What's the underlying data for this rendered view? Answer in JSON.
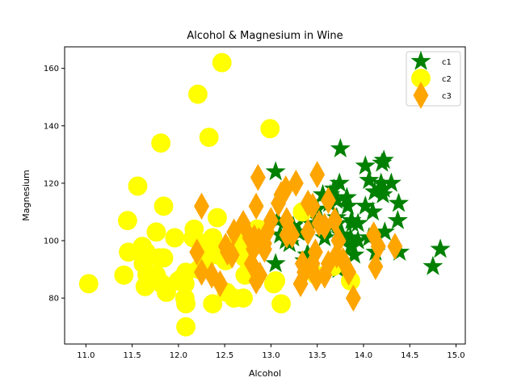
{
  "chart_data": {
    "type": "scatter",
    "title": "Alcohol & Magnesium in Wine",
    "xlabel": "Alcohol",
    "ylabel": "Magnesium",
    "xlim": [
      10.77,
      15.1
    ],
    "ylim": [
      64.0,
      167.5
    ],
    "xticks": [
      11.0,
      11.5,
      12.0,
      12.5,
      13.0,
      13.5,
      14.0,
      14.5,
      15.0
    ],
    "yticks": [
      80,
      100,
      120,
      140,
      160
    ],
    "grid": false,
    "legend_position": "top-right",
    "series": [
      {
        "name": "c1",
        "marker": "star",
        "color": "#008000",
        "points": [
          [
            13.05,
            124
          ],
          [
            13.05,
            92
          ],
          [
            13.07,
            107
          ],
          [
            13.1,
            102
          ],
          [
            13.16,
            100
          ],
          [
            13.2,
            99
          ],
          [
            13.24,
            101
          ],
          [
            13.24,
            105
          ],
          [
            13.29,
            103
          ],
          [
            13.3,
            103
          ],
          [
            13.35,
            108
          ],
          [
            13.39,
            95
          ],
          [
            13.4,
            95
          ],
          [
            13.4,
            110
          ],
          [
            13.48,
            106
          ],
          [
            13.5,
            111
          ],
          [
            13.56,
            116
          ],
          [
            13.58,
            101
          ],
          [
            13.6,
            104
          ],
          [
            13.63,
            113
          ],
          [
            13.64,
            116
          ],
          [
            13.68,
            118
          ],
          [
            13.71,
            114
          ],
          [
            13.72,
            106
          ],
          [
            13.73,
            90
          ],
          [
            13.74,
            120
          ],
          [
            13.75,
            132
          ],
          [
            13.76,
            102
          ],
          [
            13.77,
            102
          ],
          [
            13.82,
            115
          ],
          [
            13.83,
            112
          ],
          [
            13.86,
            98
          ],
          [
            13.87,
            107
          ],
          [
            13.88,
            106
          ],
          [
            13.88,
            98
          ],
          [
            13.9,
            95
          ],
          [
            13.94,
            100
          ],
          [
            14.02,
            112
          ],
          [
            14.06,
            101
          ],
          [
            14.06,
            121
          ],
          [
            14.1,
            110
          ],
          [
            14.12,
            117
          ],
          [
            14.13,
            96
          ],
          [
            14.19,
            120
          ],
          [
            14.2,
            127
          ],
          [
            14.21,
            116
          ],
          [
            14.22,
            118
          ],
          [
            14.23,
            103
          ],
          [
            14.3,
            120
          ],
          [
            14.37,
            107
          ],
          [
            14.38,
            113
          ],
          [
            14.39,
            96
          ],
          [
            14.75,
            91
          ],
          [
            14.83,
            97
          ],
          [
            13.36,
            93
          ],
          [
            13.86,
            101
          ],
          [
            14.22,
            128
          ],
          [
            14.02,
            126
          ],
          [
            13.94,
            106
          ],
          [
            13.71,
            108
          ]
        ]
      },
      {
        "name": "c2",
        "marker": "circle",
        "color": "#ffff00",
        "points": [
          [
            11.03,
            85
          ],
          [
            11.41,
            88
          ],
          [
            11.45,
            107
          ],
          [
            11.46,
            96
          ],
          [
            11.56,
            119
          ],
          [
            11.61,
            98
          ],
          [
            11.62,
            92
          ],
          [
            11.64,
            84
          ],
          [
            11.65,
            96
          ],
          [
            11.66,
            88
          ],
          [
            11.76,
            88
          ],
          [
            11.76,
            103
          ],
          [
            11.79,
            94
          ],
          [
            11.81,
            134
          ],
          [
            11.82,
            85
          ],
          [
            11.84,
            112
          ],
          [
            11.84,
            94
          ],
          [
            11.87,
            82
          ],
          [
            11.96,
            101
          ],
          [
            12.0,
            86
          ],
          [
            12.04,
            87
          ],
          [
            12.07,
            85
          ],
          [
            12.07,
            80
          ],
          [
            12.08,
            78
          ],
          [
            12.08,
            70
          ],
          [
            12.08,
            89
          ],
          [
            12.16,
            101
          ],
          [
            12.17,
            104
          ],
          [
            12.21,
            151
          ],
          [
            12.22,
            90
          ],
          [
            12.25,
            99
          ],
          [
            12.29,
            93
          ],
          [
            12.33,
            136
          ],
          [
            12.34,
            98
          ],
          [
            12.37,
            78
          ],
          [
            12.42,
            108
          ],
          [
            12.42,
            97
          ],
          [
            12.43,
            95
          ],
          [
            12.47,
            162
          ],
          [
            12.51,
            93
          ],
          [
            12.52,
            82
          ],
          [
            12.6,
            80
          ],
          [
            12.64,
            100
          ],
          [
            12.67,
            97
          ],
          [
            12.69,
            98
          ],
          [
            12.7,
            80
          ],
          [
            12.72,
            94
          ],
          [
            12.77,
            98
          ],
          [
            12.85,
            104
          ],
          [
            12.86,
            104
          ],
          [
            12.99,
            139
          ],
          [
            13.03,
            85
          ],
          [
            13.05,
            86
          ],
          [
            13.11,
            78
          ],
          [
            13.34,
            110
          ],
          [
            13.49,
            88
          ],
          [
            13.67,
            91
          ],
          [
            13.86,
            86
          ],
          [
            12.37,
            101
          ],
          [
            12.72,
            88
          ]
        ]
      },
      {
        "name": "c3",
        "marker": "thin_diamond",
        "color": "#ffa500",
        "points": [
          [
            12.2,
            96
          ],
          [
            12.25,
            89
          ],
          [
            12.25,
            112
          ],
          [
            12.36,
            88
          ],
          [
            12.45,
            85
          ],
          [
            12.51,
            98
          ],
          [
            12.53,
            96
          ],
          [
            12.58,
            95
          ],
          [
            12.6,
            103
          ],
          [
            12.7,
            106
          ],
          [
            12.77,
            101
          ],
          [
            12.79,
            92
          ],
          [
            12.81,
            97
          ],
          [
            12.82,
            101
          ],
          [
            12.84,
            112
          ],
          [
            12.84,
            86
          ],
          [
            12.86,
            122
          ],
          [
            12.87,
            100
          ],
          [
            12.88,
            88
          ],
          [
            12.93,
            99
          ],
          [
            12.96,
            103
          ],
          [
            13.08,
            113
          ],
          [
            13.11,
            116
          ],
          [
            13.16,
            118
          ],
          [
            13.17,
            102
          ],
          [
            13.17,
            107
          ],
          [
            13.23,
            102
          ],
          [
            13.27,
            120
          ],
          [
            13.32,
            85
          ],
          [
            13.34,
            92
          ],
          [
            13.36,
            89
          ],
          [
            13.4,
            103
          ],
          [
            13.4,
            113
          ],
          [
            13.45,
            112
          ],
          [
            13.48,
            96
          ],
          [
            13.49,
            87
          ],
          [
            13.5,
            123
          ],
          [
            13.52,
            106
          ],
          [
            13.58,
            105
          ],
          [
            13.62,
            92
          ],
          [
            13.69,
            107
          ],
          [
            13.71,
            95
          ],
          [
            13.73,
            100
          ],
          [
            13.78,
            93
          ],
          [
            13.84,
            89
          ],
          [
            13.89,
            80
          ],
          [
            14.13,
            91
          ],
          [
            14.16,
            98
          ],
          [
            14.34,
            98
          ],
          [
            12.93,
            97
          ],
          [
            13.58,
            88
          ],
          [
            13.0,
            107
          ],
          [
            13.45,
            92
          ],
          [
            13.62,
            114
          ],
          [
            14.11,
            102
          ]
        ]
      }
    ]
  }
}
